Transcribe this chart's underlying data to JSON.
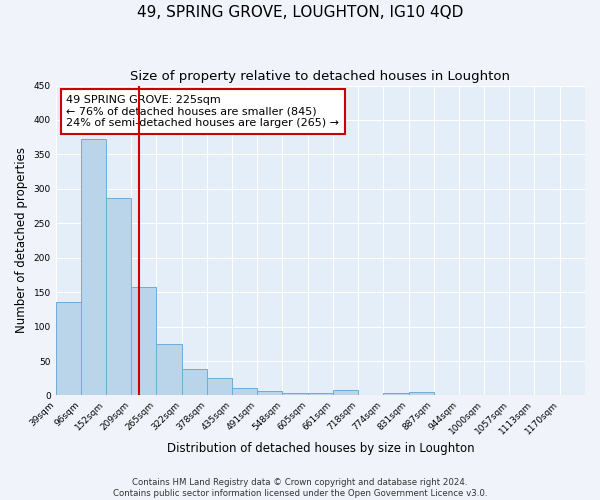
{
  "title": "49, SPRING GROVE, LOUGHTON, IG10 4QD",
  "subtitle": "Size of property relative to detached houses in Loughton",
  "xlabel": "Distribution of detached houses by size in Loughton",
  "ylabel": "Number of detached properties",
  "bar_values": [
    135,
    373,
    286,
    157,
    75,
    38,
    25,
    11,
    7,
    3,
    3,
    8,
    0,
    4,
    5,
    0,
    0,
    0,
    0,
    0,
    0
  ],
  "bar_labels": [
    "39sqm",
    "96sqm",
    "152sqm",
    "209sqm",
    "265sqm",
    "322sqm",
    "378sqm",
    "435sqm",
    "491sqm",
    "548sqm",
    "605sqm",
    "661sqm",
    "718sqm",
    "774sqm",
    "831sqm",
    "887sqm",
    "944sqm",
    "1000sqm",
    "1057sqm",
    "1113sqm",
    "1170sqm"
  ],
  "bin_edges": [
    39,
    96,
    152,
    209,
    265,
    322,
    378,
    435,
    491,
    548,
    605,
    661,
    718,
    774,
    831,
    887,
    944,
    1000,
    1057,
    1113,
    1170,
    1227
  ],
  "bar_color": "#bad4ea",
  "bar_edgecolor": "#6aaed6",
  "bar_linewidth": 0.7,
  "vline_x": 225,
  "vline_color": "#cc0000",
  "ylim": [
    0,
    450
  ],
  "yticks": [
    0,
    50,
    100,
    150,
    200,
    250,
    300,
    350,
    400,
    450
  ],
  "annotation_box_text": "49 SPRING GROVE: 225sqm\n← 76% of detached houses are smaller (845)\n24% of semi-detached houses are larger (265) →",
  "annotation_box_edgecolor": "#cc0000",
  "annotation_box_facecolor": "#ffffff",
  "annotation_fontsize": 8.0,
  "title_fontsize": 11,
  "subtitle_fontsize": 9.5,
  "xlabel_fontsize": 8.5,
  "ylabel_fontsize": 8.5,
  "footer_line1": "Contains HM Land Registry data © Crown copyright and database right 2024.",
  "footer_line2": "Contains public sector information licensed under the Open Government Licence v3.0.",
  "background_color": "#f0f4fa",
  "grid_color": "#ffffff",
  "axis_bg_color": "#e4eef8"
}
